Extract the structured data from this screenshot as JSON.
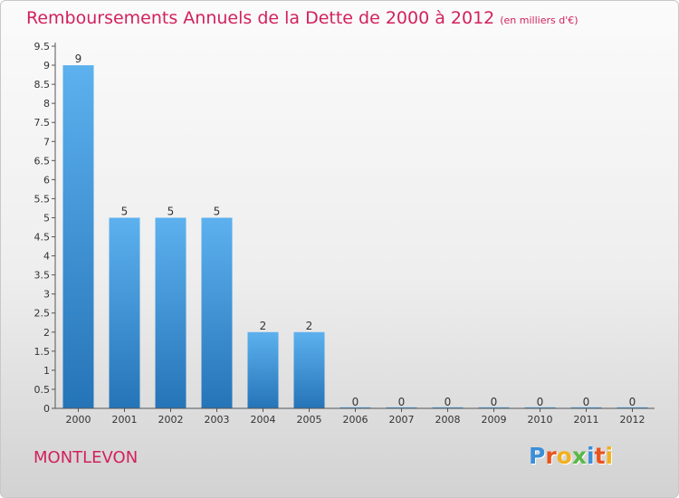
{
  "title": "Remboursements Annuels de la Dette de 2000 à 2012",
  "unit_note": "(en milliers d'€)",
  "commune": "MONTLEVON",
  "logo_text": "Proxiti",
  "logo_colors": [
    "#3a8fd8",
    "#e8541e",
    "#f2b01e",
    "#58b947",
    "#3a8fd8",
    "#e8541e",
    "#f2b01e"
  ],
  "colors": {
    "accent": "#d2215e",
    "bar_top": "#5db1ee",
    "bar_bottom": "#2574b8"
  },
  "chart_data": {
    "type": "bar",
    "title": "Remboursements Annuels de la Dette de 2000 à 2012",
    "xlabel": "",
    "ylabel": "",
    "categories": [
      "2000",
      "2001",
      "2002",
      "2003",
      "2004",
      "2005",
      "2006",
      "2007",
      "2008",
      "2009",
      "2010",
      "2011",
      "2012"
    ],
    "values": [
      9,
      5,
      5,
      5,
      2,
      2,
      0,
      0,
      0,
      0,
      0,
      0,
      0
    ],
    "ylim": [
      0,
      9.5
    ],
    "yticks": [
      {
        "value": 0,
        "label": "0"
      },
      {
        "value": 0.5,
        "label": "0.5"
      },
      {
        "value": 1,
        "label": "1"
      },
      {
        "value": 1.5,
        "label": "1.5"
      },
      {
        "value": 2,
        "label": "2"
      },
      {
        "value": 2.5,
        "label": "2.5"
      },
      {
        "value": 3,
        "label": "3"
      },
      {
        "value": 3.5,
        "label": "3.5"
      },
      {
        "value": 4,
        "label": "4"
      },
      {
        "value": 4.5,
        "label": "4.5"
      },
      {
        "value": 5,
        "label": "5"
      },
      {
        "value": 5.5,
        "label": "5.5"
      },
      {
        "value": 6,
        "label": "6"
      },
      {
        "value": 6.5,
        "label": "6.5"
      },
      {
        "value": 7,
        "label": "7"
      },
      {
        "value": 7.5,
        "label": "7.5"
      },
      {
        "value": 8,
        "label": "8"
      },
      {
        "value": 8.5,
        "label": "8.5"
      },
      {
        "value": 9,
        "label": "9"
      },
      {
        "value": 9.5,
        "label": "9.5"
      }
    ],
    "grid": false,
    "legend": "none"
  }
}
